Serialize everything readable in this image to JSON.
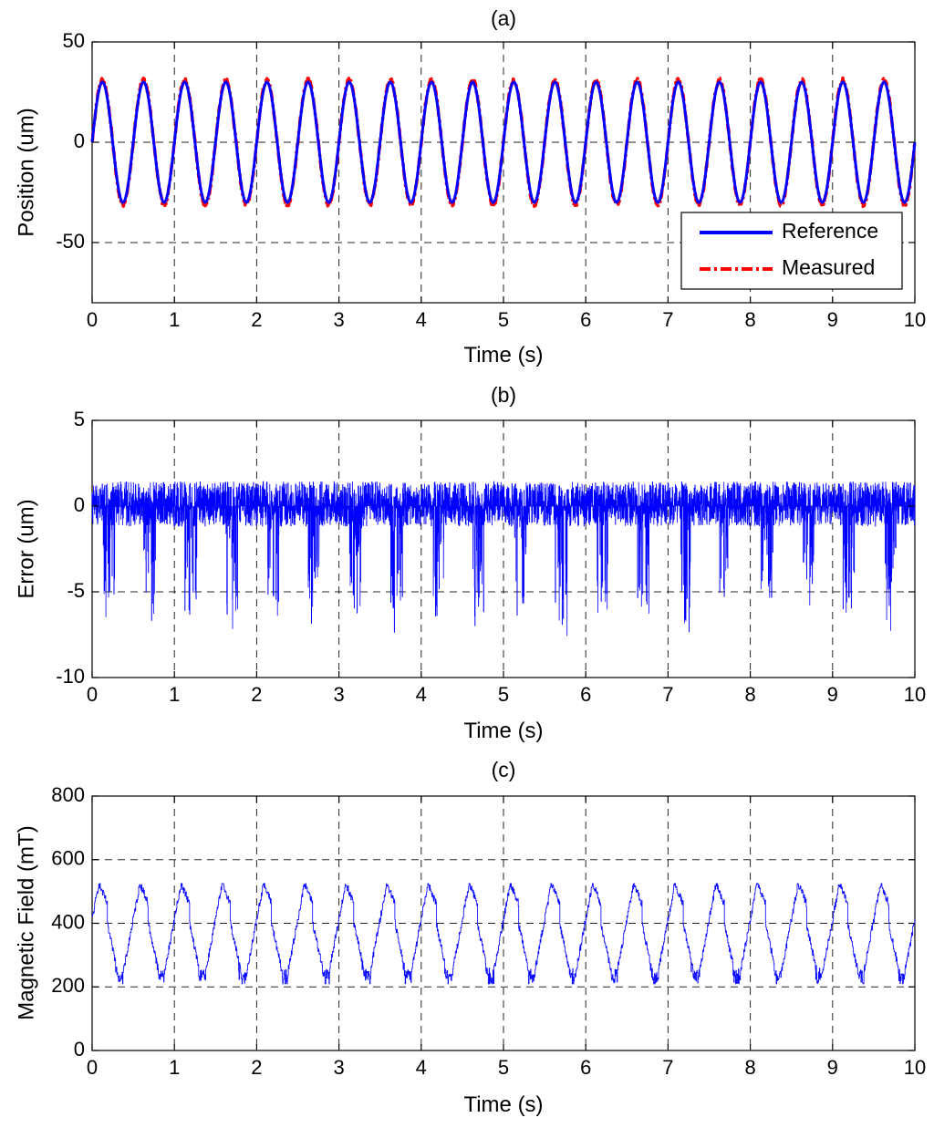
{
  "chart_data": [
    {
      "type": "line",
      "title": "(a)",
      "xlabel": "Time (s)",
      "ylabel": "Position (um)",
      "xlim": [
        0,
        10
      ],
      "ylim": [
        -80,
        50
      ],
      "xticks": [
        0,
        1,
        2,
        3,
        4,
        5,
        6,
        7,
        8,
        9,
        10
      ],
      "yticks": [
        -50,
        0,
        50
      ],
      "grid": true,
      "legend": "bottom-right",
      "signal": {
        "kind": "sine",
        "amplitude": 30,
        "frequency_hz": 2,
        "sample_step_s": 0.005
      },
      "series": [
        {
          "name": "Reference",
          "color": "#0000ff",
          "style": "solid",
          "amplitude": 30
        },
        {
          "name": "Measured",
          "color": "#ff0000",
          "style": "dash-dot",
          "amplitude": 31
        }
      ]
    },
    {
      "type": "line",
      "title": "(b)",
      "xlabel": "Time (s)",
      "ylabel": "Error (um)",
      "xlim": [
        0,
        10
      ],
      "ylim": [
        -10,
        5
      ],
      "xticks": [
        0,
        1,
        2,
        3,
        4,
        5,
        6,
        7,
        8,
        9,
        10
      ],
      "yticks": [
        -10,
        -5,
        0,
        5
      ],
      "grid": true,
      "signal": {
        "kind": "oscillating error",
        "range": [
          -7.6,
          2.1
        ],
        "period_s": 0.5
      },
      "series": [
        {
          "color": "#0000ff",
          "style": "solid"
        }
      ]
    },
    {
      "type": "line",
      "title": "(c)",
      "xlabel": "Time (s)",
      "ylabel": "Magnetic Field (mT)",
      "xlim": [
        0,
        10
      ],
      "ylim": [
        0,
        800
      ],
      "xticks": [
        0,
        1,
        2,
        3,
        4,
        5,
        6,
        7,
        8,
        9,
        10
      ],
      "yticks": [
        0,
        200,
        400,
        600,
        800
      ],
      "grid": true,
      "signal": {
        "kind": "periodic ramp",
        "range": [
          210,
          525
        ],
        "period_s": 0.5
      },
      "series": [
        {
          "color": "#0000ff",
          "style": "solid"
        }
      ]
    }
  ]
}
